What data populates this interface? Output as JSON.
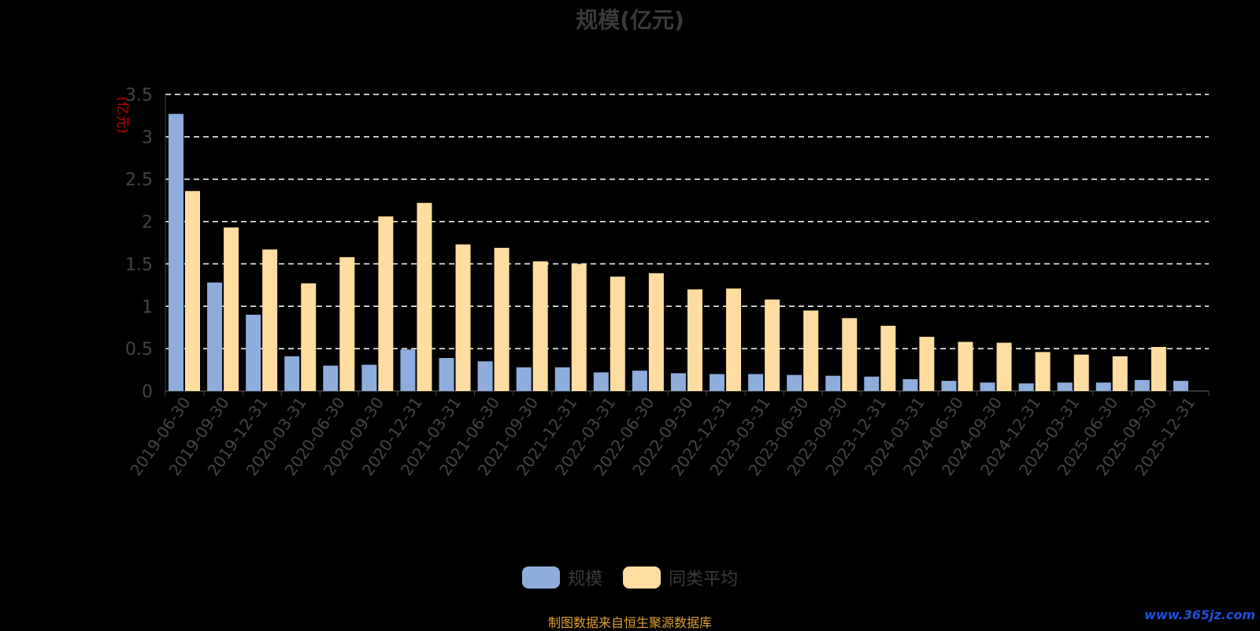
{
  "chart_data": {
    "type": "bar",
    "title": "规模(亿元)",
    "ylabel": "(亿元)",
    "ylim": [
      0,
      3.5
    ],
    "yticks": [
      "0",
      "0.5",
      "1",
      "1.5",
      "2",
      "2.5",
      "3",
      "3.5"
    ],
    "grid": "horizontal-dashed",
    "legend_position": "bottom",
    "categories": [
      "2019-06-30",
      "2019-09-30",
      "2019-12-31",
      "2020-03-31",
      "2020-06-30",
      "2020-09-30",
      "2020-12-31",
      "2021-03-31",
      "2021-06-30",
      "2021-09-30",
      "2021-12-31",
      "2022-03-31",
      "2022-06-30",
      "2022-09-30",
      "2022-12-31",
      "2023-03-31",
      "2023-06-30",
      "2023-09-30",
      "2023-12-31",
      "2024-03-31",
      "2024-06-30",
      "2024-09-30",
      "2024-12-31",
      "2025-03-31",
      "2025-06-30",
      "2025-09-30",
      "2025-12-31"
    ],
    "series": [
      {
        "name": "规模",
        "color": "#8EADDC",
        "values": [
          3.27,
          1.28,
          0.9,
          0.41,
          0.3,
          0.31,
          0.49,
          0.39,
          0.35,
          0.28,
          0.28,
          0.22,
          0.24,
          0.21,
          0.2,
          0.2,
          0.19,
          0.18,
          0.17,
          0.14,
          0.12,
          0.1,
          0.09,
          0.1,
          0.1,
          0.13,
          0.12
        ]
      },
      {
        "name": "同类平均",
        "color": "#FFDDA0",
        "values": [
          2.36,
          1.93,
          1.67,
          1.27,
          1.58,
          2.06,
          2.22,
          1.73,
          1.69,
          1.53,
          1.5,
          1.35,
          1.39,
          1.2,
          1.21,
          1.08,
          0.95,
          0.86,
          0.77,
          0.64,
          0.58,
          0.57,
          0.46,
          0.43,
          0.41,
          0.52,
          null
        ]
      }
    ]
  },
  "footer": {
    "source": "制图数据来自恒生聚源数据库",
    "watermark": "www.365jz.com"
  }
}
